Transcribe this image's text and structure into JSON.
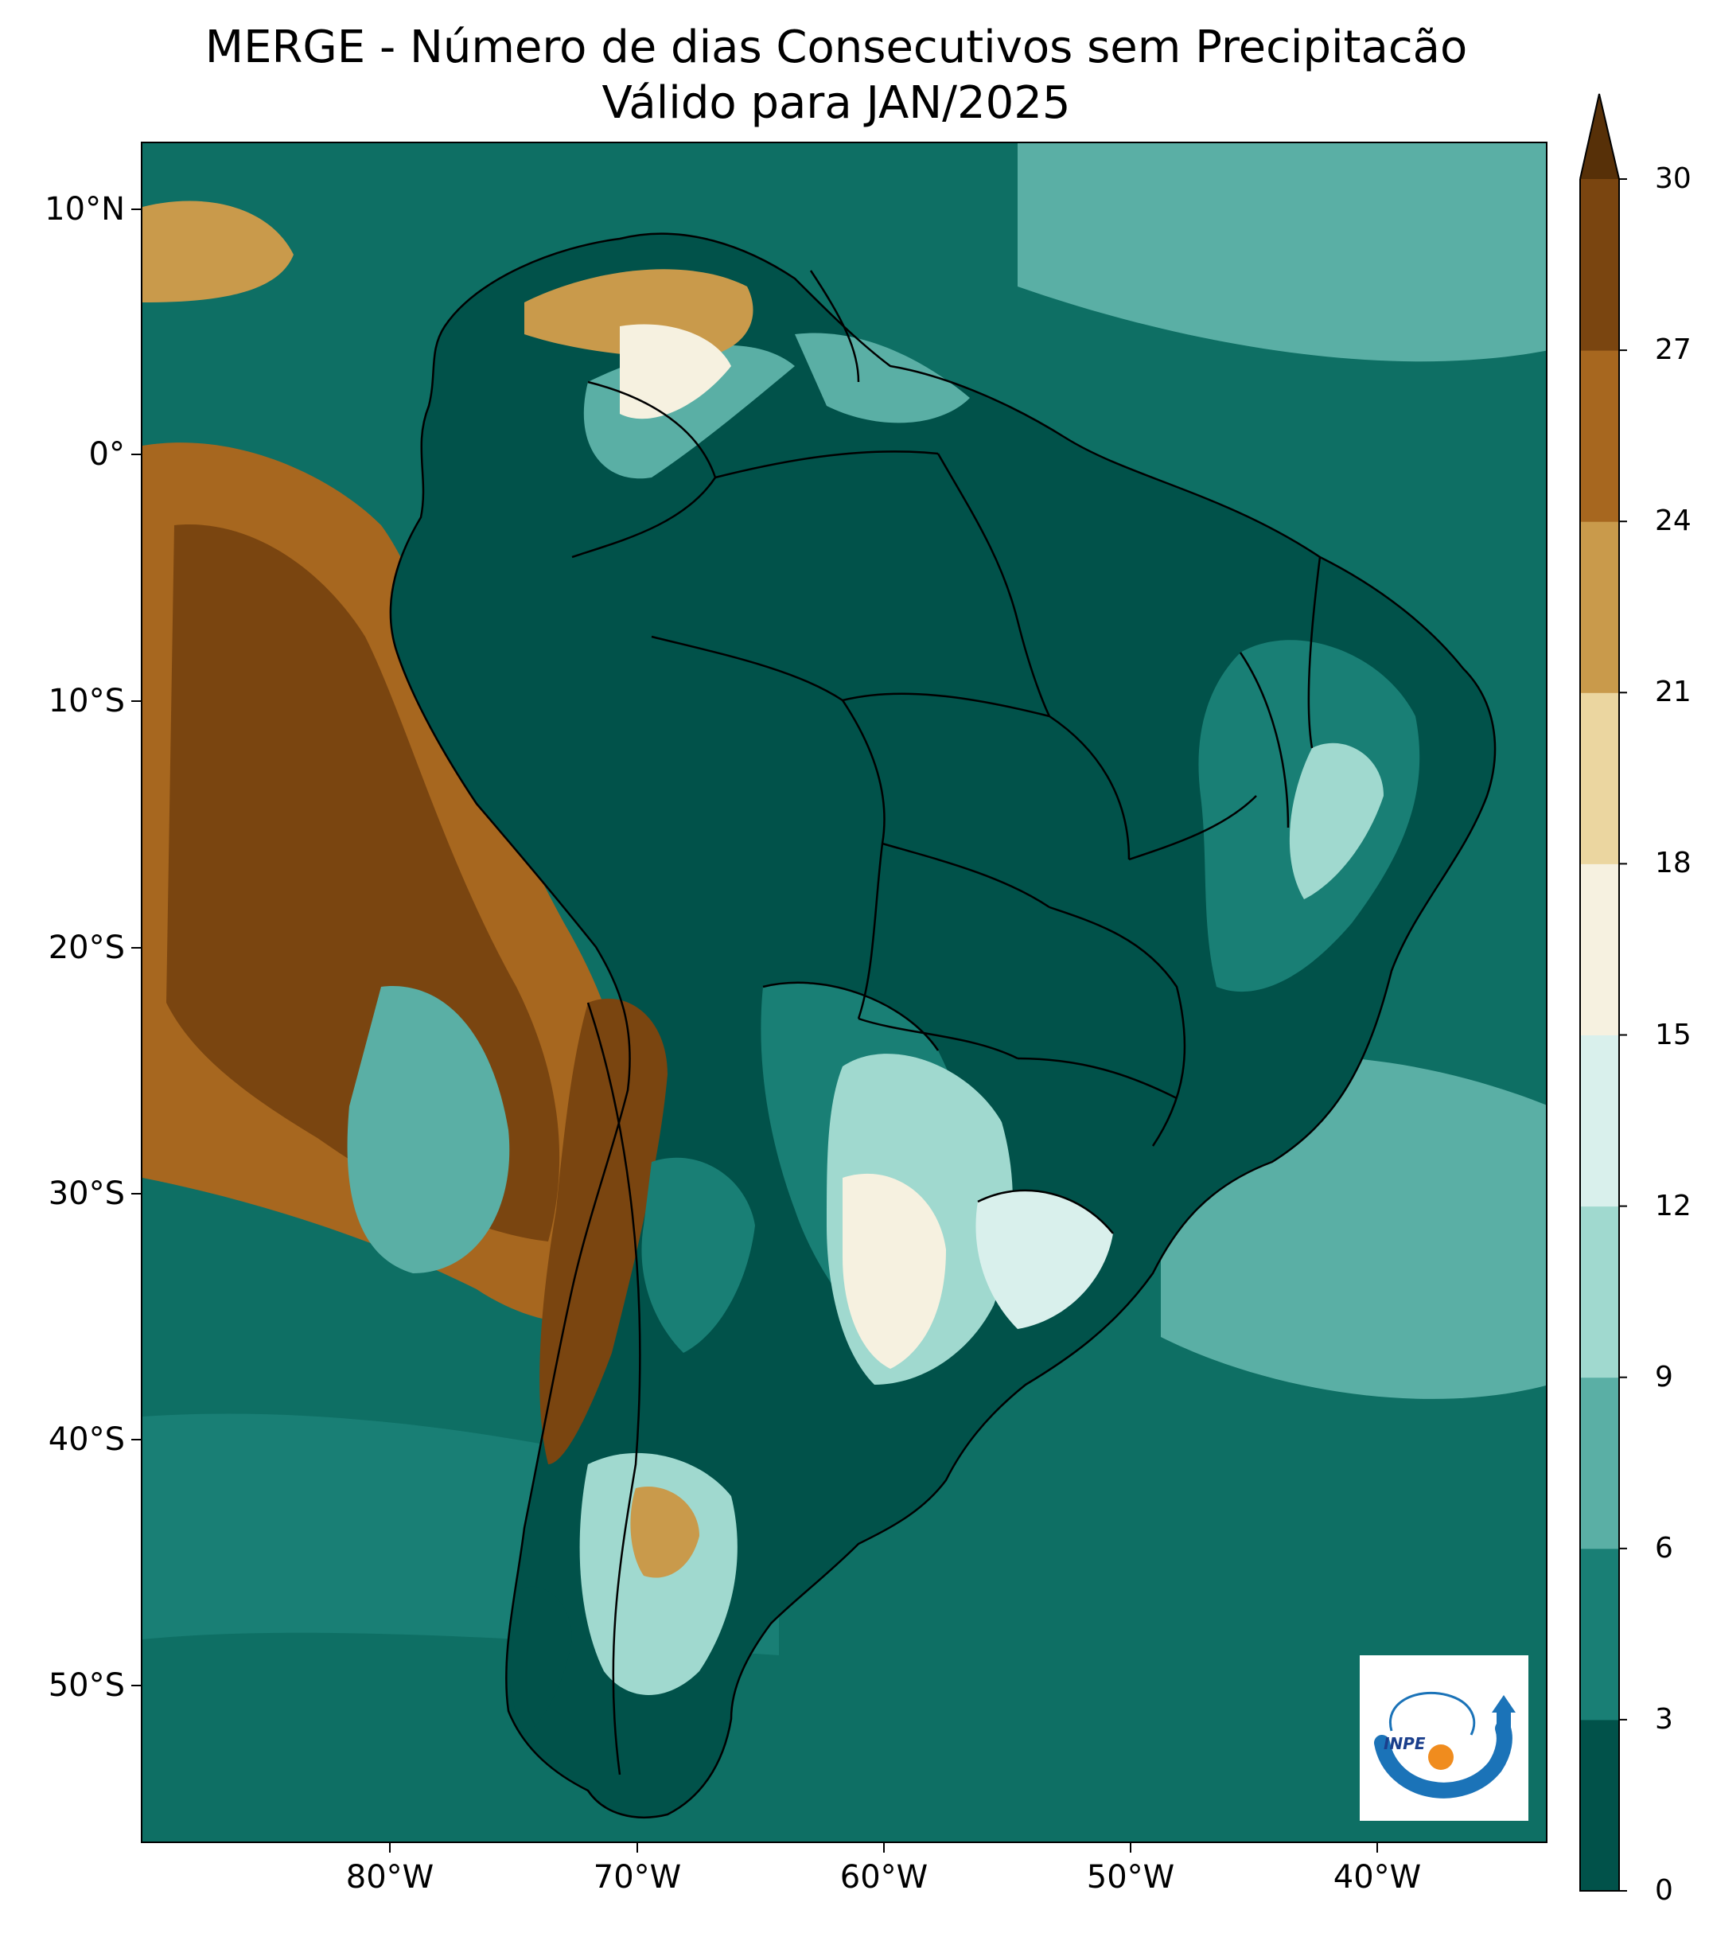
{
  "title": {
    "line1": "MERGE - Número de dias Consecutivos sem Precipitacão",
    "line2": "Válido para JAN/2025"
  },
  "axes": {
    "lat_labels": [
      "10°N",
      "0°",
      "10°S",
      "20°S",
      "30°S",
      "40°S",
      "50°S"
    ],
    "lon_labels": [
      "80°W",
      "70°W",
      "60°W",
      "50°W",
      "40°W"
    ],
    "lat_range": [
      -56,
      13
    ],
    "lon_range": [
      -90,
      -33
    ]
  },
  "colorbar": {
    "ticks": [
      "0",
      "3",
      "6",
      "9",
      "12",
      "15",
      "18",
      "21",
      "24",
      "27",
      "30"
    ],
    "extend": "max",
    "colors": [
      "#01524a",
      "#197f75",
      "#5aafa5",
      "#a0d9cf",
      "#d9f0ec",
      "#f6f1e0",
      "#ebd6a0",
      "#c99a4b",
      "#a7671f",
      "#7a4510",
      "#573008"
    ]
  },
  "logo": {
    "text": "INPE",
    "colors": {
      "blue": "#1b73b8",
      "orange": "#f08c1e"
    }
  }
}
